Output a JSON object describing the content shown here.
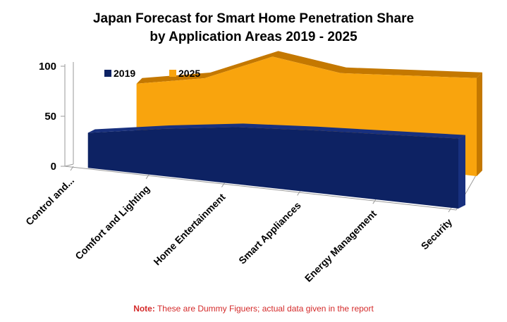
{
  "colors": {
    "series_2019": "#0d2263",
    "series_2019_top": "#18307e",
    "series_2025": "#f9a40d",
    "series_2025_top": "#c47800",
    "axis": "#9a9a9a",
    "note": "#d42a2a"
  },
  "chart_data": {
    "type": "area",
    "title_line1": "Japan Forecast for Smart Home Penetration Share",
    "title_line2": "by Application Areas 2019 - 2025",
    "categories": [
      "Control and...",
      "Comfort and Lighting",
      "Home Entertainment",
      "Smart Appliances",
      "Energy Management",
      "Security"
    ],
    "series": [
      {
        "name": "2019",
        "values": [
          35,
          47,
          57,
          62,
          66,
          70
        ]
      },
      {
        "name": "2025",
        "values": [
          55,
          68,
          97,
          88,
          93,
          98
        ]
      }
    ],
    "ylim": [
      0,
      100
    ],
    "yticks": [
      "0",
      "50",
      "100"
    ],
    "legend_position": "top-left",
    "grid": false,
    "three_d": true
  },
  "note": {
    "label": "Note:",
    "text": " These are Dummy Figuers; actual data given in the report"
  }
}
